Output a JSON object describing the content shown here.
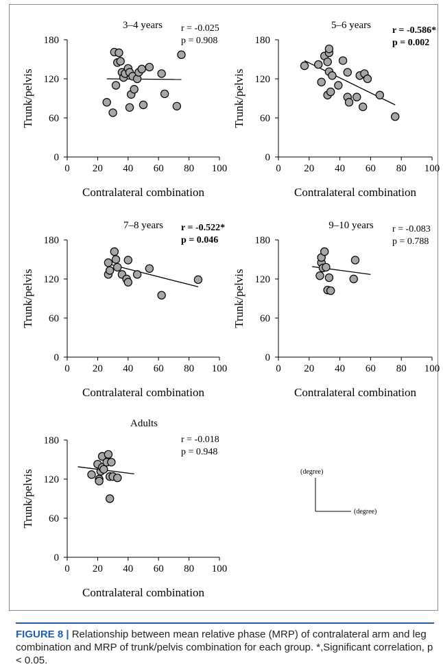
{
  "caption": {
    "label": "FIGURE 8 |",
    "text": "Relationship between mean relative phase (MRP) of contralateral arm and leg combination and MRP of trunk/pelvis combination for each group. *,Significant correlation, p < 0.05."
  },
  "legend": {
    "y_unit": "(degree)",
    "x_unit": "(degree)"
  },
  "colors": {
    "marker_fill": "#a6a6a6",
    "marker_stroke": "#000000",
    "caption_accent": "#1f5fa8"
  },
  "chart_data": [
    {
      "type": "scatter",
      "title": "3–4 years",
      "xlabel": "Contralateral combination",
      "ylabel": "Trunk/pelvis",
      "xlim": [
        0,
        100
      ],
      "ylim": [
        0,
        180
      ],
      "xticks": [
        "0",
        "20",
        "40",
        "60",
        "80",
        "100"
      ],
      "yticks": [
        "0",
        "60",
        "120",
        "180"
      ],
      "r_text": "r = -0.025",
      "p_text": "p = 0.908",
      "significant": false,
      "points": [
        [
          26,
          84
        ],
        [
          30,
          68
        ],
        [
          31,
          161
        ],
        [
          32,
          110
        ],
        [
          33,
          145
        ],
        [
          34,
          160
        ],
        [
          35,
          147
        ],
        [
          36,
          130
        ],
        [
          37,
          122
        ],
        [
          38,
          128
        ],
        [
          40,
          136
        ],
        [
          41,
          130
        ],
        [
          41,
          76
        ],
        [
          42,
          96
        ],
        [
          43,
          124
        ],
        [
          44,
          104
        ],
        [
          46,
          120
        ],
        [
          47,
          130
        ],
        [
          49,
          135
        ],
        [
          50,
          80
        ],
        [
          54,
          138
        ],
        [
          62,
          128
        ],
        [
          64,
          97
        ],
        [
          72,
          78
        ],
        [
          75,
          157
        ]
      ],
      "trend": {
        "x": [
          26,
          75
        ],
        "y": [
          120,
          119
        ]
      }
    },
    {
      "type": "scatter",
      "title": "5–6 years",
      "xlabel": "Contralateral combination",
      "ylabel": "Trunk/pelvis",
      "xlim": [
        0,
        100
      ],
      "ylim": [
        0,
        180
      ],
      "xticks": [
        "0",
        "20",
        "40",
        "60",
        "80",
        "100"
      ],
      "yticks": [
        "0",
        "60",
        "120",
        "180"
      ],
      "r_text": "r = -0.586*",
      "p_text": "p = 0.002",
      "significant": true,
      "points": [
        [
          17,
          140
        ],
        [
          26,
          142
        ],
        [
          28,
          115
        ],
        [
          30,
          155
        ],
        [
          32,
          146
        ],
        [
          32,
          95
        ],
        [
          33,
          160
        ],
        [
          33,
          166
        ],
        [
          33,
          131
        ],
        [
          34,
          100
        ],
        [
          35,
          125
        ],
        [
          39,
          110
        ],
        [
          42,
          148
        ],
        [
          45,
          130
        ],
        [
          45,
          92
        ],
        [
          46,
          84
        ],
        [
          51,
          92
        ],
        [
          53,
          125
        ],
        [
          55,
          77
        ],
        [
          56,
          128
        ],
        [
          58,
          120
        ],
        [
          66,
          95
        ],
        [
          76,
          62
        ]
      ],
      "trend": {
        "x": [
          17,
          76
        ],
        "y": [
          148,
          80
        ]
      }
    },
    {
      "type": "scatter",
      "title": "7–8 years",
      "xlabel": "Contralateral combination",
      "ylabel": "Trunk/pelvis",
      "xlim": [
        0,
        100
      ],
      "ylim": [
        0,
        180
      ],
      "xticks": [
        "0",
        "20",
        "40",
        "60",
        "80",
        "100"
      ],
      "yticks": [
        "0",
        "60",
        "120",
        "180"
      ],
      "r_text": "r = -0.522*",
      "p_text": "p = 0.046",
      "significant": true,
      "points": [
        [
          27,
          145
        ],
        [
          27,
          127
        ],
        [
          28,
          133
        ],
        [
          31,
          162
        ],
        [
          32,
          150
        ],
        [
          33,
          138
        ],
        [
          36,
          127
        ],
        [
          39,
          120
        ],
        [
          40,
          149
        ],
        [
          40,
          115
        ],
        [
          46,
          127
        ],
        [
          54,
          136
        ],
        [
          62,
          95
        ],
        [
          86,
          119
        ]
      ],
      "trend": {
        "x": [
          27,
          86
        ],
        "y": [
          143,
          108
        ]
      }
    },
    {
      "type": "scatter",
      "title": "9–10 years",
      "xlabel": "Contralateral combination",
      "ylabel": "Trunk/pelvis",
      "xlim": [
        0,
        100
      ],
      "ylim": [
        0,
        180
      ],
      "xticks": [
        "0",
        "20",
        "40",
        "60",
        "80",
        "100"
      ],
      "yticks": [
        "0",
        "60",
        "120",
        "180"
      ],
      "r_text": "r = -0.083",
      "p_text": "p = 0.788",
      "significant": false,
      "points": [
        [
          27,
          125
        ],
        [
          28,
          145
        ],
        [
          28,
          153
        ],
        [
          29,
          137
        ],
        [
          30,
          162
        ],
        [
          31,
          138
        ],
        [
          32,
          103
        ],
        [
          33,
          122
        ],
        [
          34,
          102
        ],
        [
          49,
          120
        ],
        [
          50,
          149
        ]
      ],
      "trend": {
        "x": [
          22,
          60
        ],
        "y": [
          139,
          127
        ]
      }
    },
    {
      "type": "scatter",
      "title": "Adults",
      "xlabel": "Contralateral combination",
      "ylabel": "Trunk/pelvis",
      "xlim": [
        0,
        100
      ],
      "ylim": [
        0,
        180
      ],
      "xticks": [
        "0",
        "20",
        "40",
        "60",
        "80",
        "100"
      ],
      "yticks": [
        "0",
        "60",
        "120",
        "180"
      ],
      "r_text": "r = -0.018",
      "p_text": "p = 0.948",
      "significant": false,
      "points": [
        [
          16,
          127
        ],
        [
          20,
          143
        ],
        [
          21,
          120
        ],
        [
          21,
          117
        ],
        [
          22,
          132
        ],
        [
          23,
          155
        ],
        [
          23,
          138
        ],
        [
          24,
          135
        ],
        [
          26,
          146
        ],
        [
          27,
          158
        ],
        [
          28,
          124
        ],
        [
          28,
          90
        ],
        [
          29,
          146
        ],
        [
          30,
          124
        ],
        [
          33,
          122
        ]
      ],
      "trend": {
        "x": [
          7,
          44
        ],
        "y": [
          139,
          128
        ]
      }
    }
  ]
}
